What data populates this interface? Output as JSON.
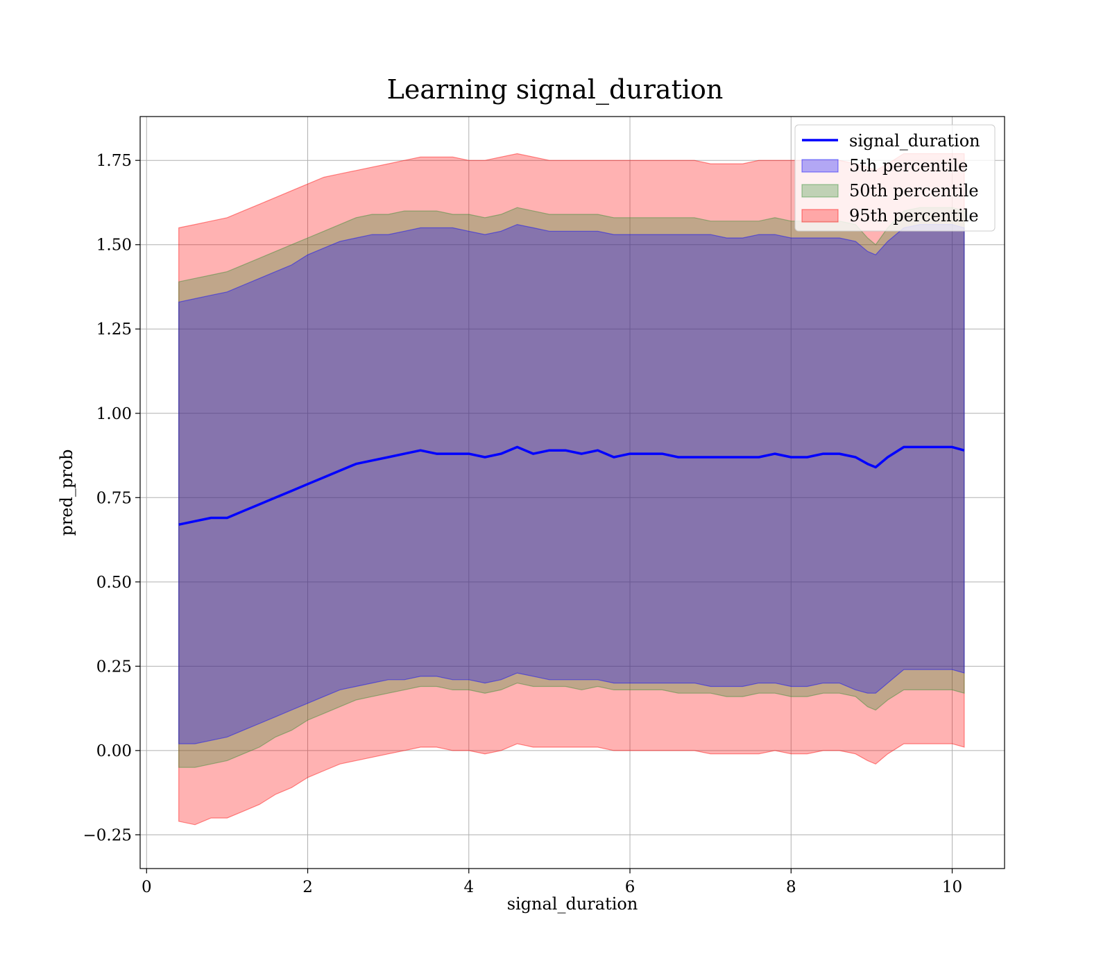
{
  "chart_data": {
    "type": "area",
    "title": "Learning signal_duration",
    "xlabel": "signal_duration",
    "ylabel": "pred_prob",
    "xlim": [
      -0.08,
      10.65
    ],
    "ylim": [
      -0.35,
      1.88
    ],
    "xticks": [
      0,
      2,
      4,
      6,
      8,
      10
    ],
    "xtick_labels": [
      "0",
      "2",
      "4",
      "6",
      "8",
      "10"
    ],
    "yticks": [
      -0.25,
      0.0,
      0.25,
      0.5,
      0.75,
      1.0,
      1.25,
      1.5,
      1.75
    ],
    "ytick_labels": [
      "−0.25",
      "0.00",
      "0.25",
      "0.50",
      "0.75",
      "1.00",
      "1.25",
      "1.50",
      "1.75"
    ],
    "grid": true,
    "legend_position": "top-right",
    "x": [
      0.4,
      0.6,
      0.8,
      1.0,
      1.2,
      1.4,
      1.6,
      1.8,
      2.0,
      2.2,
      2.4,
      2.6,
      2.8,
      3.0,
      3.2,
      3.4,
      3.6,
      3.8,
      4.0,
      4.2,
      4.4,
      4.6,
      4.8,
      5.0,
      5.2,
      5.4,
      5.6,
      5.8,
      6.0,
      6.2,
      6.4,
      6.6,
      6.8,
      7.0,
      7.2,
      7.4,
      7.6,
      7.8,
      8.0,
      8.2,
      8.4,
      8.6,
      8.8,
      8.95,
      9.05,
      9.2,
      9.4,
      9.6,
      9.8,
      10.0,
      10.15
    ],
    "line": {
      "name": "signal_duration",
      "color": "#0000ff",
      "values": [
        0.67,
        0.68,
        0.69,
        0.69,
        0.71,
        0.73,
        0.75,
        0.77,
        0.79,
        0.81,
        0.83,
        0.85,
        0.86,
        0.87,
        0.88,
        0.89,
        0.88,
        0.88,
        0.88,
        0.87,
        0.88,
        0.9,
        0.88,
        0.89,
        0.89,
        0.88,
        0.89,
        0.87,
        0.88,
        0.88,
        0.88,
        0.87,
        0.87,
        0.87,
        0.87,
        0.87,
        0.87,
        0.88,
        0.87,
        0.87,
        0.88,
        0.88,
        0.87,
        0.85,
        0.84,
        0.87,
        0.9,
        0.9,
        0.9,
        0.9,
        0.89
      ]
    },
    "bands": [
      {
        "name": "95th percentile",
        "color": "#ff0000",
        "lower": [
          -0.21,
          -0.22,
          -0.2,
          -0.2,
          -0.18,
          -0.16,
          -0.13,
          -0.11,
          -0.08,
          -0.06,
          -0.04,
          -0.03,
          -0.02,
          -0.01,
          0.0,
          0.01,
          0.01,
          0.0,
          0.0,
          -0.01,
          0.0,
          0.02,
          0.01,
          0.01,
          0.01,
          0.01,
          0.01,
          0.0,
          0.0,
          0.0,
          0.0,
          0.0,
          0.0,
          -0.01,
          -0.01,
          -0.01,
          -0.01,
          0.0,
          -0.01,
          -0.01,
          0.0,
          0.0,
          -0.01,
          -0.03,
          -0.04,
          -0.01,
          0.02,
          0.02,
          0.02,
          0.02,
          0.01
        ],
        "upper": [
          1.55,
          1.56,
          1.57,
          1.58,
          1.6,
          1.62,
          1.64,
          1.66,
          1.68,
          1.7,
          1.71,
          1.72,
          1.73,
          1.74,
          1.75,
          1.76,
          1.76,
          1.76,
          1.75,
          1.75,
          1.76,
          1.77,
          1.76,
          1.75,
          1.75,
          1.75,
          1.75,
          1.75,
          1.75,
          1.75,
          1.75,
          1.75,
          1.75,
          1.74,
          1.74,
          1.74,
          1.75,
          1.75,
          1.75,
          1.75,
          1.75,
          1.75,
          1.74,
          1.73,
          1.72,
          1.74,
          1.77,
          1.77,
          1.77,
          1.77,
          1.77
        ]
      },
      {
        "name": "50th percentile",
        "color": "#2e8b2e",
        "lower": [
          -0.05,
          -0.05,
          -0.04,
          -0.03,
          -0.01,
          0.01,
          0.04,
          0.06,
          0.09,
          0.11,
          0.13,
          0.15,
          0.16,
          0.17,
          0.18,
          0.19,
          0.19,
          0.18,
          0.18,
          0.17,
          0.18,
          0.2,
          0.19,
          0.19,
          0.19,
          0.18,
          0.19,
          0.18,
          0.18,
          0.18,
          0.18,
          0.17,
          0.17,
          0.17,
          0.16,
          0.16,
          0.17,
          0.17,
          0.16,
          0.16,
          0.17,
          0.17,
          0.16,
          0.13,
          0.12,
          0.15,
          0.18,
          0.18,
          0.18,
          0.18,
          0.17
        ],
        "upper": [
          1.39,
          1.4,
          1.41,
          1.42,
          1.44,
          1.46,
          1.48,
          1.5,
          1.52,
          1.54,
          1.56,
          1.58,
          1.59,
          1.59,
          1.6,
          1.6,
          1.6,
          1.59,
          1.59,
          1.58,
          1.59,
          1.61,
          1.6,
          1.59,
          1.59,
          1.59,
          1.59,
          1.58,
          1.58,
          1.58,
          1.58,
          1.58,
          1.58,
          1.57,
          1.57,
          1.57,
          1.57,
          1.58,
          1.57,
          1.57,
          1.57,
          1.57,
          1.56,
          1.52,
          1.5,
          1.55,
          1.6,
          1.61,
          1.61,
          1.61,
          1.6
        ]
      },
      {
        "name": "5th percentile",
        "color": "#0000ff",
        "lower": [
          0.02,
          0.02,
          0.03,
          0.04,
          0.06,
          0.08,
          0.1,
          0.12,
          0.14,
          0.16,
          0.18,
          0.19,
          0.2,
          0.21,
          0.21,
          0.22,
          0.22,
          0.21,
          0.21,
          0.2,
          0.21,
          0.23,
          0.22,
          0.21,
          0.21,
          0.21,
          0.21,
          0.2,
          0.2,
          0.2,
          0.2,
          0.2,
          0.2,
          0.19,
          0.19,
          0.19,
          0.2,
          0.2,
          0.19,
          0.19,
          0.2,
          0.2,
          0.18,
          0.17,
          0.17,
          0.2,
          0.24,
          0.24,
          0.24,
          0.24,
          0.23
        ],
        "upper": [
          1.33,
          1.34,
          1.35,
          1.36,
          1.38,
          1.4,
          1.42,
          1.44,
          1.47,
          1.49,
          1.51,
          1.52,
          1.53,
          1.53,
          1.54,
          1.55,
          1.55,
          1.55,
          1.54,
          1.53,
          1.54,
          1.56,
          1.55,
          1.54,
          1.54,
          1.54,
          1.54,
          1.53,
          1.53,
          1.53,
          1.53,
          1.53,
          1.53,
          1.53,
          1.52,
          1.52,
          1.53,
          1.53,
          1.52,
          1.52,
          1.52,
          1.52,
          1.51,
          1.48,
          1.47,
          1.51,
          1.55,
          1.56,
          1.56,
          1.56,
          1.55
        ]
      }
    ],
    "legend": [
      {
        "label": "signal_duration",
        "kind": "line",
        "color": "#0000ff"
      },
      {
        "label": "5th percentile",
        "kind": "patch",
        "color": "#0000ff"
      },
      {
        "label": "50th percentile",
        "kind": "patch",
        "color": "#2e8b2e"
      },
      {
        "label": "95th percentile",
        "kind": "patch",
        "color": "#ff0000"
      }
    ]
  }
}
